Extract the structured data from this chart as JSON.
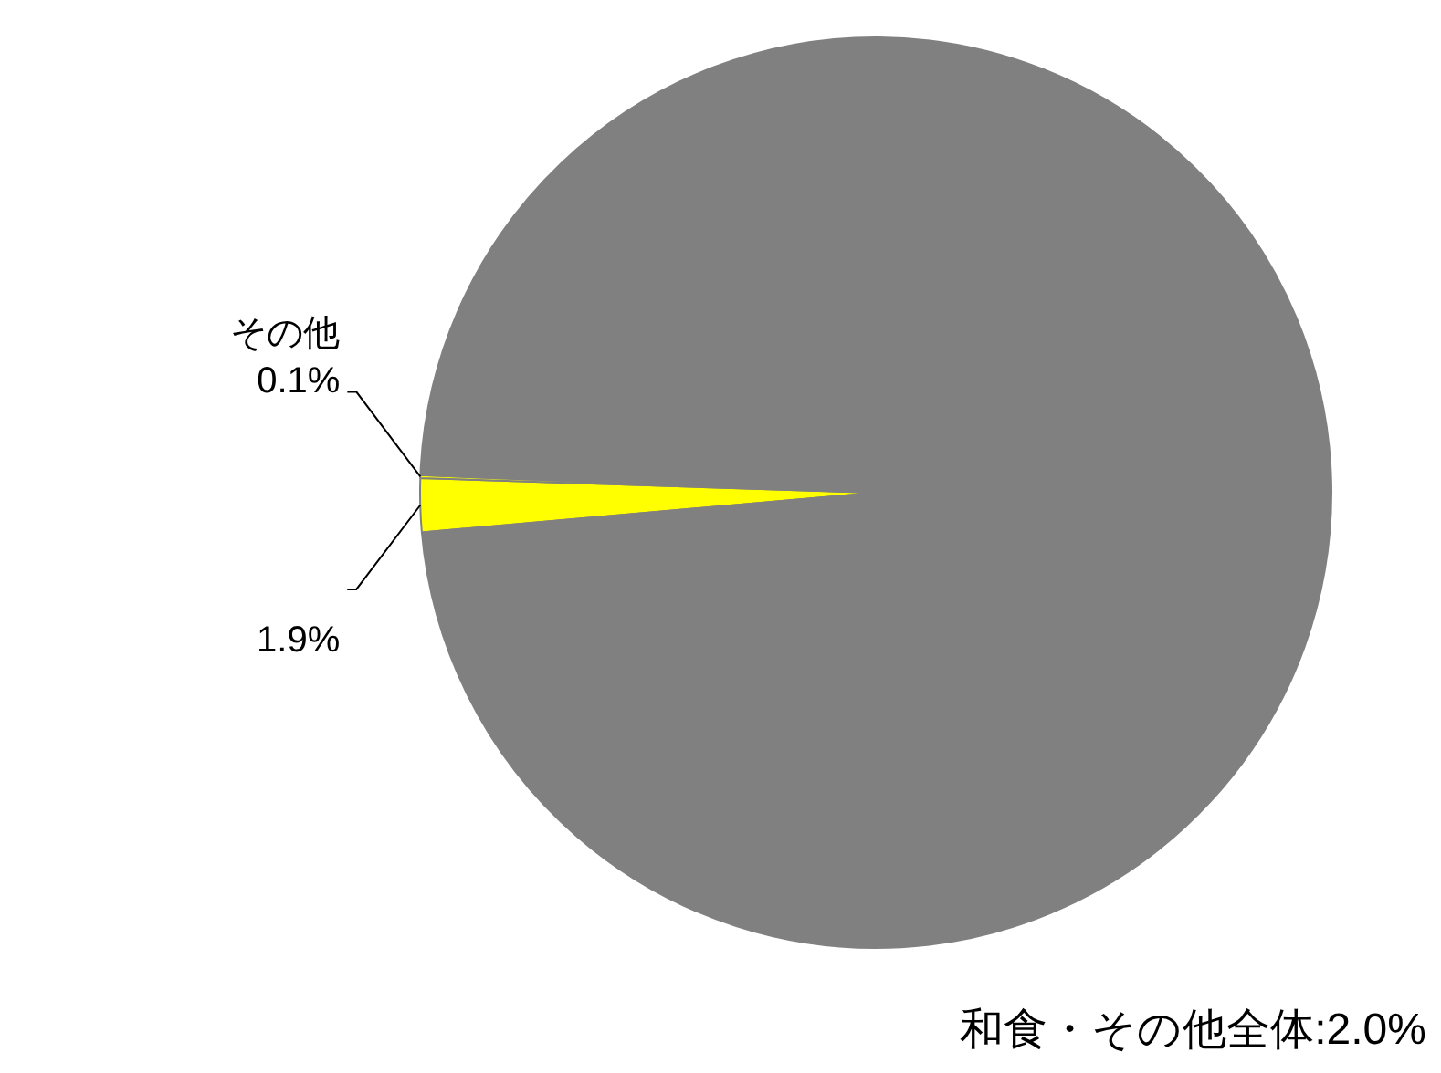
{
  "chart_data": {
    "type": "pie",
    "categories": [
      null,
      "その他",
      null
    ],
    "values": [
      1.9,
      0.1,
      98.0
    ],
    "colors": [
      "#ffff00",
      "#ffff00",
      "#808080"
    ],
    "value_labels": [
      "1.9%",
      "0.1%",
      null
    ],
    "legend": false,
    "annotations": [
      "和食・その他全体:2.0%"
    ]
  }
}
